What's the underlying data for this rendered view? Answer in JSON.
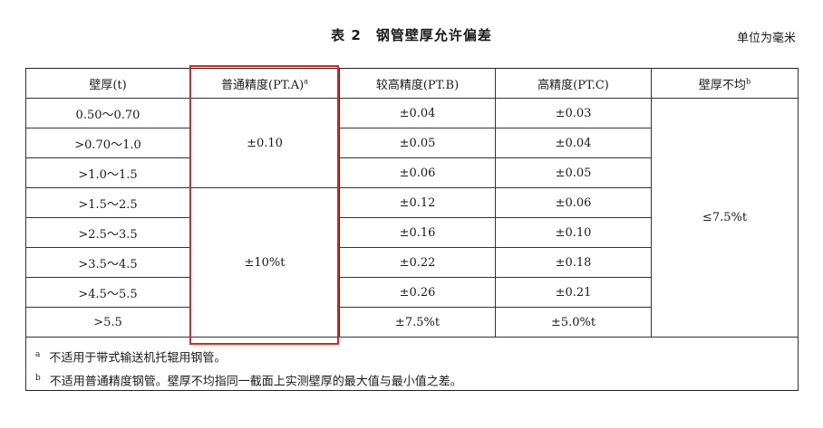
{
  "title": "表 2　钢管壁厚允许偏差",
  "unit": "单位为毫米",
  "headers": {
    "thickness": "壁厚(t)",
    "pta": "普通精度(PT.A)",
    "pta_note": "a",
    "ptb": "较高精度(PT.B)",
    "ptc": "高精度(PT.C)",
    "uneven": "壁厚不均",
    "uneven_note": "b"
  },
  "rows": [
    {
      "thickness": "0.50～0.70",
      "ptb": "±0.04",
      "ptc": "±0.03"
    },
    {
      "thickness": ">0.70～1.0",
      "ptb": "±0.05",
      "ptc": "±0.04"
    },
    {
      "thickness": ">1.0～1.5",
      "ptb": "±0.06",
      "ptc": "±0.05"
    },
    {
      "thickness": ">1.5～2.5",
      "ptb": "±0.12",
      "ptc": "±0.06"
    },
    {
      "thickness": ">2.5～3.5",
      "ptb": "±0.16",
      "ptc": "±0.10"
    },
    {
      "thickness": ">3.5～4.5",
      "ptb": "±0.22",
      "ptc": "±0.18"
    },
    {
      "thickness": ">4.5～5.5",
      "ptb": "±0.26",
      "ptc": "±0.21"
    },
    {
      "thickness": ">5.5",
      "ptb": "±7.5%t",
      "ptc": "±5.0%t"
    }
  ],
  "pta_groups": [
    "±0.10",
    "±10%t"
  ],
  "uneven_value": "≤7.5%t",
  "notes": [
    {
      "mark": "a",
      "text": "不适用于带式输送机托辊用钢管。"
    },
    {
      "mark": "b",
      "text": "不适用普通精度钢管。壁厚不均指同一截面上实测壁厚的最大值与最小值之差。"
    }
  ],
  "highlight_color": "#e02424"
}
